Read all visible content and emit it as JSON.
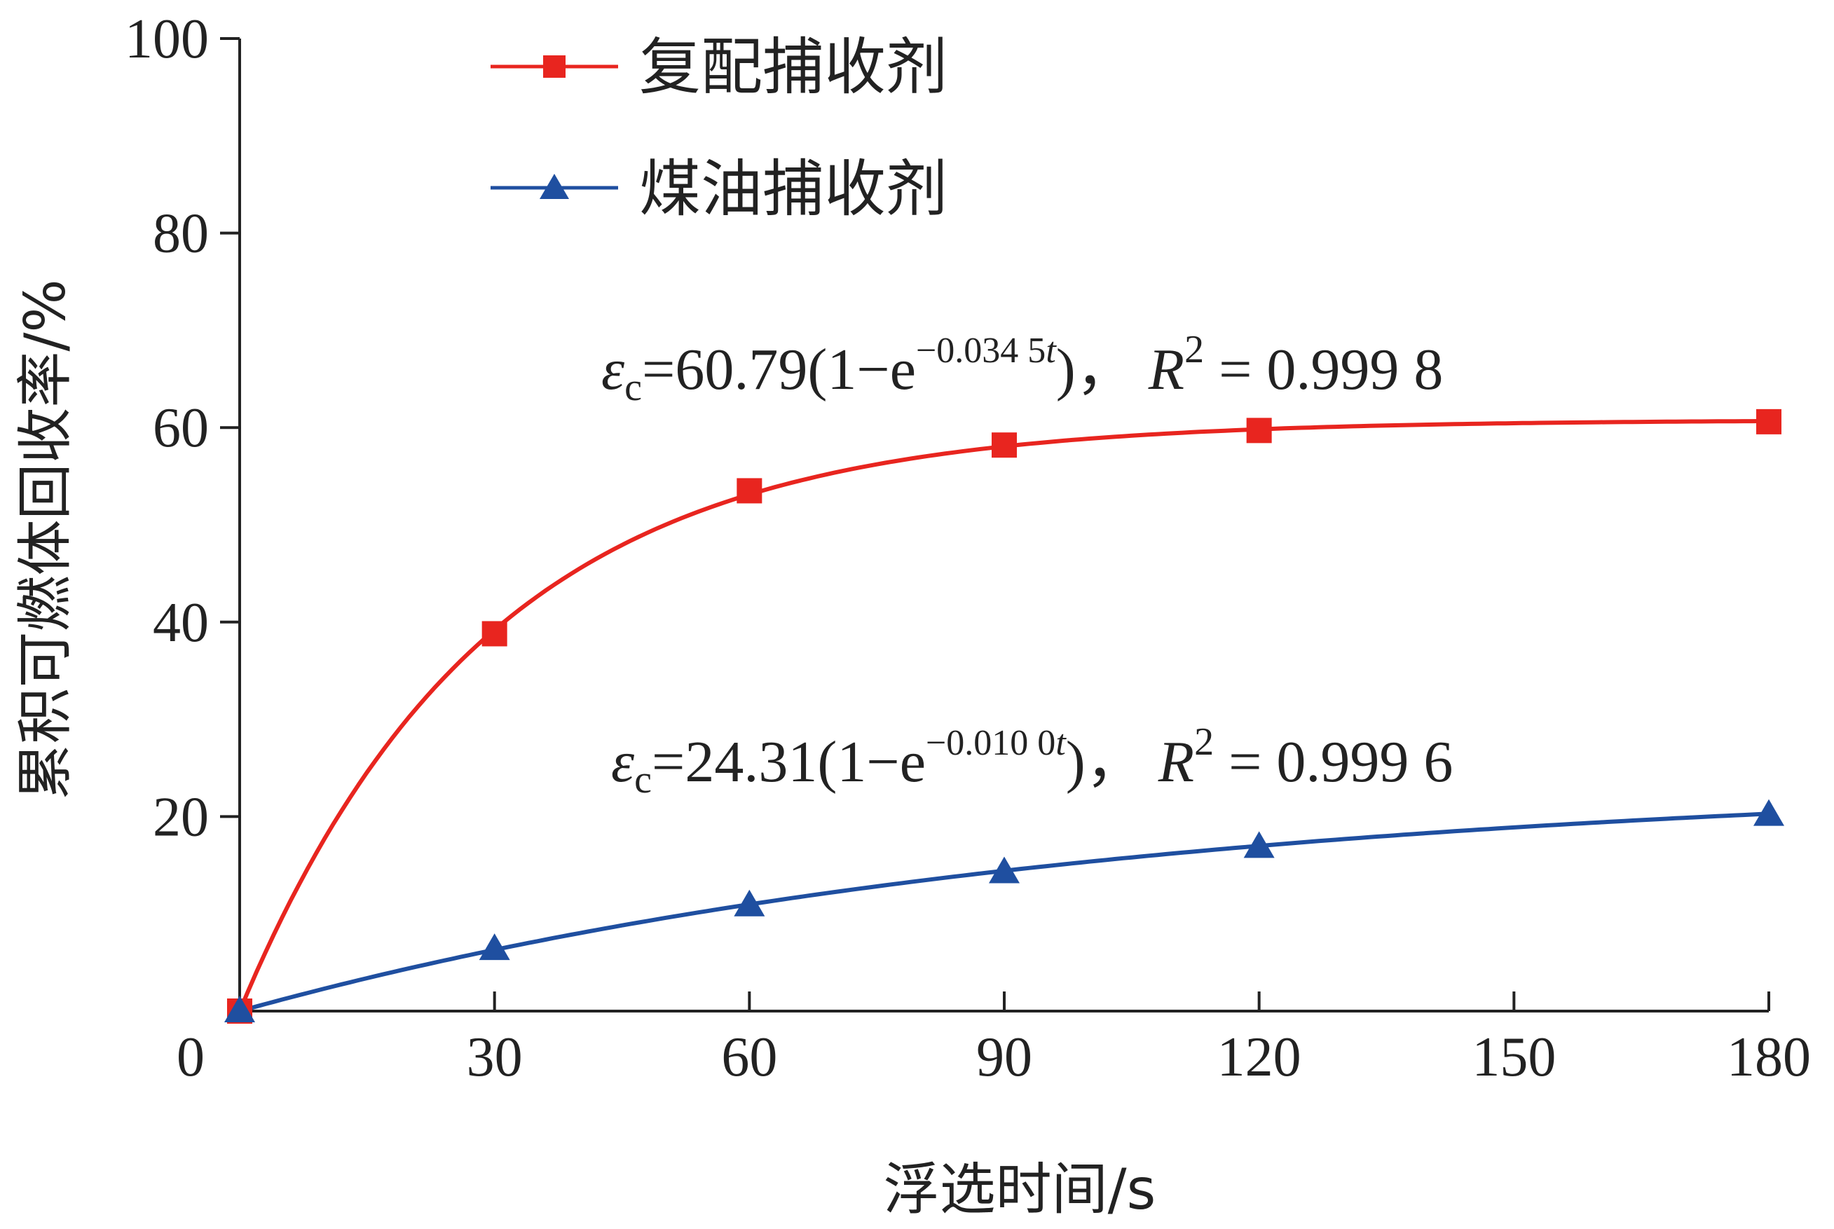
{
  "chart_data": {
    "type": "line",
    "xlabel": "浮选时间/s",
    "ylabel": "累积可燃体回收率/%",
    "xlim": [
      0,
      180
    ],
    "ylim": [
      0,
      100
    ],
    "x_ticks": [
      30,
      60,
      90,
      120,
      150,
      180
    ],
    "y_ticks": [
      20,
      40,
      60,
      80,
      100
    ],
    "origin_label": "0",
    "grid": false,
    "legend_position": "top-left",
    "series": [
      {
        "name": "复配捕收剂",
        "color": "#e8251f",
        "marker": "square",
        "x": [
          0,
          30,
          60,
          90,
          120,
          180
        ],
        "y": [
          0,
          38.8,
          53.5,
          58.2,
          59.7,
          60.6
        ],
        "fit": {
          "A": 60.79,
          "k": 0.0345
        },
        "equation": {
          "symbol": "ε",
          "subscript": "c",
          "main": "=60.79(1−e",
          "exponent_num": "−0.034 5",
          "exponent_var": "t",
          "close": ")，",
          "r_symbol": "R",
          "r_power": "2",
          "r_value": " = 0.999 8"
        }
      },
      {
        "name": "煤油捕收剂",
        "color": "#1f4fa0",
        "marker": "triangle",
        "x": [
          0,
          30,
          60,
          90,
          120,
          180
        ],
        "y": [
          0,
          6.4,
          10.9,
          14.3,
          16.9,
          20.2
        ],
        "fit": {
          "A": 24.31,
          "k": 0.01
        },
        "equation": {
          "symbol": "ε",
          "subscript": "c",
          "main": "=24.31(1−e",
          "exponent_num": "−0.010 0",
          "exponent_var": "t",
          "close": ")，",
          "r_symbol": "R",
          "r_power": "2",
          "r_value": " = 0.999 6"
        }
      }
    ]
  }
}
